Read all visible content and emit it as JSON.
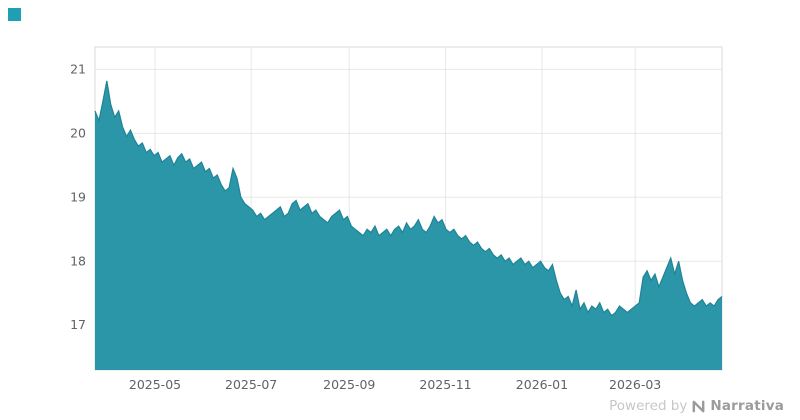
{
  "branding": {
    "logo_color": "#1e9fb2",
    "powered_by": "Powered by",
    "brand_name": "Narrativa"
  },
  "chart_data": {
    "type": "area",
    "title": "",
    "fill_color": "#2b96a7",
    "line_color": "#1f8496",
    "ylim": [
      16.3,
      21.35
    ],
    "y_ticks": [
      17,
      18,
      19,
      20,
      21
    ],
    "x_ticks": [
      {
        "label": "2025-05",
        "pos": 0.0957
      },
      {
        "label": "2025-07",
        "pos": 0.249
      },
      {
        "label": "2025-09",
        "pos": 0.4055
      },
      {
        "label": "2025-11",
        "pos": 0.559
      },
      {
        "label": "2026-01",
        "pos": 0.7128
      },
      {
        "label": "2026-03",
        "pos": 0.8615
      }
    ],
    "colors": {
      "grid": "#e7e7e7",
      "border": "#d9d9d9",
      "tick_text": "#5f6368"
    },
    "values": [
      20.35,
      20.2,
      20.5,
      20.82,
      20.45,
      20.25,
      20.35,
      20.1,
      19.95,
      20.05,
      19.9,
      19.8,
      19.85,
      19.7,
      19.75,
      19.65,
      19.7,
      19.55,
      19.6,
      19.65,
      19.5,
      19.62,
      19.68,
      19.55,
      19.6,
      19.45,
      19.5,
      19.55,
      19.4,
      19.45,
      19.3,
      19.35,
      19.2,
      19.1,
      19.15,
      19.45,
      19.3,
      19.0,
      18.9,
      18.85,
      18.8,
      18.7,
      18.75,
      18.65,
      18.7,
      18.75,
      18.8,
      18.85,
      18.7,
      18.75,
      18.9,
      18.95,
      18.8,
      18.85,
      18.9,
      18.75,
      18.8,
      18.7,
      18.65,
      18.6,
      18.7,
      18.75,
      18.8,
      18.65,
      18.7,
      18.55,
      18.5,
      18.45,
      18.4,
      18.5,
      18.45,
      18.55,
      18.4,
      18.45,
      18.5,
      18.4,
      18.5,
      18.55,
      18.45,
      18.6,
      18.5,
      18.55,
      18.65,
      18.5,
      18.45,
      18.55,
      18.7,
      18.6,
      18.65,
      18.5,
      18.45,
      18.5,
      18.4,
      18.35,
      18.4,
      18.3,
      18.25,
      18.3,
      18.2,
      18.15,
      18.2,
      18.1,
      18.05,
      18.1,
      18.0,
      18.05,
      17.95,
      18.0,
      18.05,
      17.95,
      18.0,
      17.9,
      17.95,
      18.0,
      17.9,
      17.85,
      17.95,
      17.7,
      17.5,
      17.4,
      17.45,
      17.3,
      17.55,
      17.25,
      17.35,
      17.2,
      17.3,
      17.25,
      17.35,
      17.2,
      17.25,
      17.15,
      17.2,
      17.3,
      17.25,
      17.2,
      17.25,
      17.3,
      17.35,
      17.75,
      17.85,
      17.7,
      17.8,
      17.6,
      17.75,
      17.9,
      18.05,
      17.8,
      18.0,
      17.7,
      17.5,
      17.35,
      17.3,
      17.35,
      17.4,
      17.3,
      17.35,
      17.3,
      17.4,
      17.45
    ]
  }
}
